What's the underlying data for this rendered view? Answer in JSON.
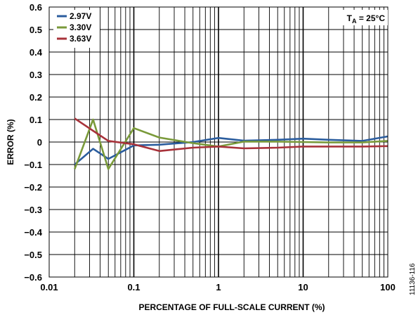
{
  "chart_data": {
    "type": "line",
    "xlabel": "PERCENTAGE OF FULL-SCALE CURRENT (%)",
    "ylabel": "ERROR (%)",
    "xscale": "log",
    "xlim": [
      0.01,
      100
    ],
    "ylim": [
      -0.6,
      0.6
    ],
    "grid": true,
    "legend_position": "top-left",
    "x_tick_labels": [
      "0.01",
      "0.1",
      "1",
      "10",
      "100"
    ],
    "y_ticks": [
      0.6,
      0.5,
      0.4,
      0.3,
      0.2,
      0.1,
      0,
      -0.1,
      -0.2,
      -0.3,
      -0.4,
      -0.5,
      -0.6
    ],
    "y_tick_labels": [
      "0.6",
      "0.5",
      "0.4",
      "0.3",
      "0.2",
      "0.1",
      "0",
      "−0.1",
      "−0.2",
      "−0.3",
      "−0.4",
      "−0.5",
      "−0.6"
    ],
    "annotation": {
      "main": "T",
      "sub": "A",
      "rest": " = 25°C"
    },
    "figure_code": "11136-116",
    "series": [
      {
        "name": "2.97V",
        "color": "#2b5d9e",
        "x": [
          0.02,
          0.033,
          0.05,
          0.1,
          0.2,
          0.5,
          1,
          2,
          5,
          10,
          20,
          50,
          100
        ],
        "values": [
          -0.1,
          -0.03,
          -0.075,
          -0.015,
          -0.012,
          0.0,
          0.018,
          0.006,
          0.01,
          0.015,
          0.01,
          0.005,
          0.025
        ]
      },
      {
        "name": "3.30V",
        "color": "#7a9a3a",
        "x": [
          0.02,
          0.033,
          0.05,
          0.1,
          0.2,
          0.5,
          1,
          2,
          5,
          10,
          20,
          50,
          100
        ],
        "values": [
          -0.12,
          0.1,
          -0.12,
          0.062,
          0.02,
          -0.005,
          -0.02,
          0.002,
          0.002,
          0.0,
          -0.002,
          -0.002,
          0.005
        ]
      },
      {
        "name": "3.63V",
        "color": "#a8323a",
        "x": [
          0.02,
          0.033,
          0.05,
          0.1,
          0.2,
          0.5,
          1,
          2,
          5,
          10,
          20,
          50,
          100
        ],
        "values": [
          0.105,
          0.05,
          0.005,
          -0.01,
          -0.04,
          -0.025,
          -0.02,
          -0.028,
          -0.025,
          -0.02,
          -0.02,
          -0.02,
          -0.018
        ]
      }
    ]
  }
}
